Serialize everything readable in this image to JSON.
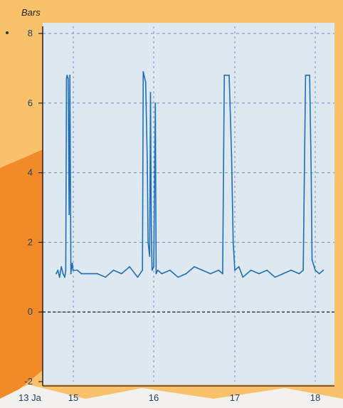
{
  "colors": {
    "background": "#f9c26a",
    "accent_shape": "#f28a28",
    "plot_bg": "#dde8f1",
    "series": "#1f6fb5",
    "grid": "#4a86c0"
  },
  "chart_data": {
    "type": "line",
    "ylabel": "Bars",
    "xlabel": "",
    "ylim": [
      -2,
      8
    ],
    "xlim": [
      13.4,
      18.15
    ],
    "y_ticks": [
      -2,
      0,
      2,
      4,
      6,
      8
    ],
    "y_tick_labels": [
      "-2",
      "0",
      "2",
      "4",
      "6",
      "8"
    ],
    "x_ticks": [
      13.4,
      15,
      16,
      17,
      18
    ],
    "x_tick_labels": [
      "13 Ja",
      "15",
      "16",
      "17",
      "18"
    ],
    "grid": true,
    "reference_line": 0,
    "series": [
      {
        "x": [
          14.5,
          14.55,
          14.6,
          14.65,
          14.7,
          14.75,
          14.78,
          14.8,
          14.82,
          14.85,
          14.87,
          14.88,
          14.9,
          14.92,
          14.93,
          14.95,
          14.97,
          14.99,
          15.05,
          15.1,
          15.2,
          15.3,
          15.4,
          15.5,
          15.6,
          15.7,
          15.8,
          15.86,
          15.87,
          15.9,
          15.92,
          15.93,
          15.95,
          15.96,
          15.97,
          15.98,
          16.0,
          16.02,
          16.03,
          16.05,
          16.1,
          16.2,
          16.3,
          16.4,
          16.5,
          16.6,
          16.7,
          16.8,
          16.85,
          16.87,
          16.88,
          16.93,
          16.94,
          16.96,
          16.98,
          17.0,
          17.05,
          17.1,
          17.2,
          17.3,
          17.4,
          17.5,
          17.6,
          17.7,
          17.8,
          17.85,
          17.88,
          17.9,
          17.93,
          17.95,
          17.96,
          18.0,
          18.05,
          18.1
        ],
        "y": [
          1.1,
          1.2,
          1.0,
          1.3,
          1.1,
          1.0,
          1.2,
          6.7,
          6.8,
          6.7,
          4.0,
          2.8,
          6.8,
          3.5,
          1.1,
          1.3,
          1.4,
          1.2,
          1.2,
          1.1,
          1.1,
          1.1,
          1.0,
          1.2,
          1.1,
          1.3,
          1.0,
          1.2,
          6.9,
          6.6,
          4.3,
          2.0,
          1.6,
          6.3,
          2.5,
          1.2,
          1.3,
          6.0,
          1.1,
          1.2,
          1.1,
          1.2,
          1.0,
          1.1,
          1.3,
          1.2,
          1.1,
          1.2,
          1.1,
          6.8,
          6.8,
          6.8,
          6.0,
          4.5,
          2.0,
          1.2,
          1.3,
          1.0,
          1.2,
          1.1,
          1.2,
          1.0,
          1.1,
          1.2,
          1.1,
          1.2,
          6.8,
          6.8,
          6.8,
          4.0,
          1.5,
          1.2,
          1.1,
          1.2
        ]
      }
    ]
  }
}
